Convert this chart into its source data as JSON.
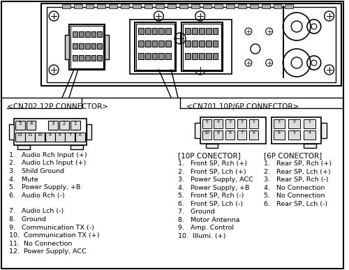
{
  "bg_color": "#ffffff",
  "cn702_label": "<CN702 12P CONNECTOR>",
  "cn701_label": "<CN701 10P/6P CONNECTOR>",
  "cn702_list_left": [
    "1.   Audio Rch Input (+)",
    "2.   Audio Lch Input (+)",
    "3.   Shild Ground",
    "4.   Mute",
    "5.   Power Supply, +B",
    "6.   Audio Rch (-)"
  ],
  "cn702_list_right": [
    "7.   Audio Lch (-)",
    "8.   Ground",
    "9.   Communication TX (-)",
    "10.  Communication TX (+)",
    "11.  No Connection",
    "12.  Power Supply, ACC"
  ],
  "p10_label": "[10P CONECTOR]",
  "p6_label": "[6P CONECTOR]",
  "p10_list": [
    "1.   Front SP, Rch (+)",
    "2.   Front SP, Lch (+)",
    "3.   Power Supply, ACC",
    "4.   Power Supply, +B",
    "5.   Front SP, Rch (-)",
    "6.   Front SP, Lch (-)",
    "7.   Ground",
    "8.   Motor Antenna",
    "9.   Amp. Control",
    "10.  Illumi. (+)"
  ],
  "p6_list": [
    "1.   Rear SP, Rch (+)",
    "2.   Rear SP, Lch (+)",
    "3.   Rear SP, Rch (-)",
    "4.   No Connection",
    "5.   No Connection",
    "6.   Rear SP, Lch (-)"
  ],
  "cn702_top_pins": [
    "5",
    "4",
    "",
    "3",
    "2",
    "1"
  ],
  "cn702_bot_pins": [
    "12",
    "11",
    "10",
    "9",
    "8",
    "7",
    "6"
  ]
}
